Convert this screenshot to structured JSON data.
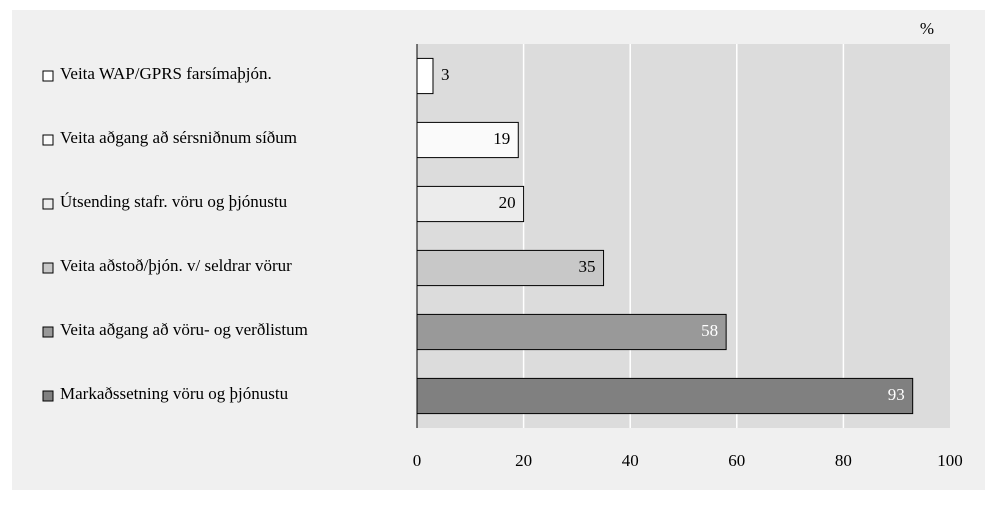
{
  "chart_data": {
    "type": "barh",
    "unit_label": "%",
    "categories": [
      "Veita WAP/GPRS farsímaþjón.",
      "Veita aðgang að sérsniðnum síðum",
      "Útsending stafr. vöru og þjónustu",
      "Veita aðstoð/þjón. v/ seldrar vörur",
      "Veita aðgang að vöru- og verðlistum",
      "Markaðssetning vöru og þjónustu"
    ],
    "values": [
      3,
      19,
      20,
      35,
      58,
      93
    ],
    "colors": [
      "#ffffff",
      "#fafafa",
      "#ececec",
      "#c8c8c8",
      "#999999",
      "#808080"
    ],
    "xlim": [
      0,
      100
    ],
    "xticks": [
      0,
      20,
      40,
      60,
      80,
      100
    ],
    "grid": true
  }
}
